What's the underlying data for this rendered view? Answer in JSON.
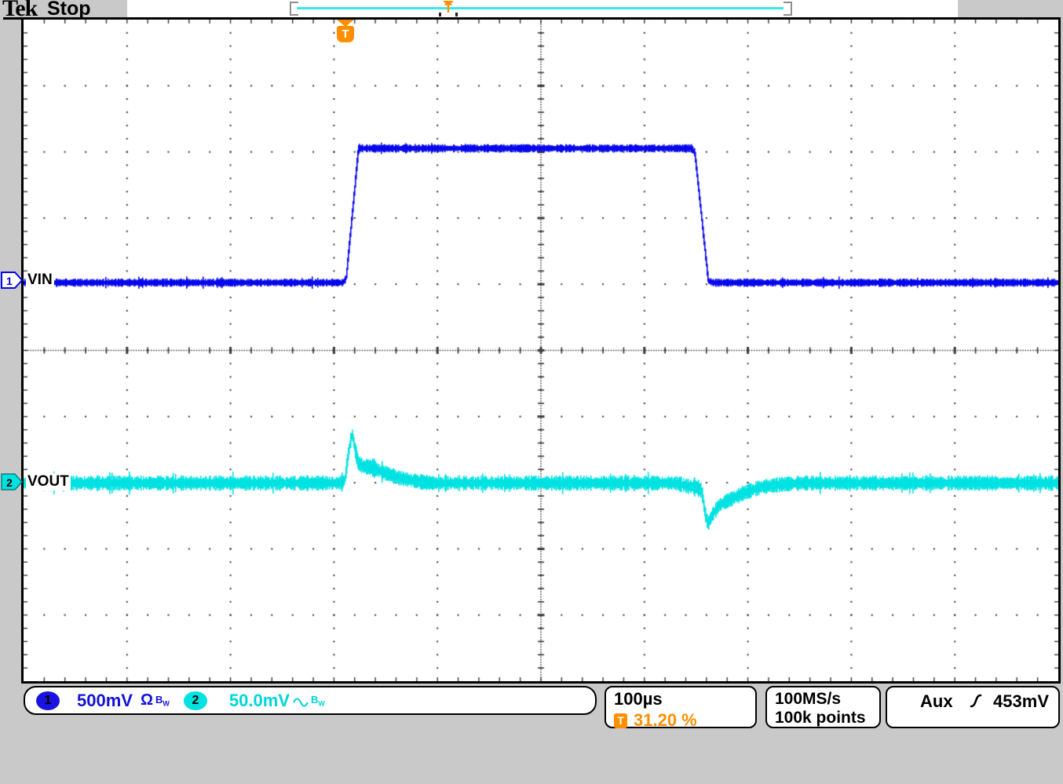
{
  "header": {
    "logo": "Tek",
    "status": "Stop"
  },
  "record_view": {
    "trigger_marker": "T"
  },
  "plot": {
    "trigger_badge": "T"
  },
  "channels": [
    {
      "num": "1",
      "label": "VIN",
      "scale": "500mV",
      "coupling": "Ω",
      "bw_b": "B",
      "bw_w": "W"
    },
    {
      "num": "2",
      "label": "VOUT",
      "scale": "50.0mV",
      "bw_b": "B",
      "bw_w": "W"
    }
  ],
  "timebase": {
    "scale": "100µs",
    "trigger_icon": "T",
    "trigger_position": "31.20 %"
  },
  "acquisition": {
    "sample_rate": "100MS/s",
    "record_length": "100k points"
  },
  "trigger": {
    "source": "Aux",
    "level": "453mV"
  },
  "colors": {
    "ch1": "#0707ec",
    "ch2": "#00e2e2",
    "trigger": "#ff8f00",
    "background": "#c9c9c9",
    "grid": "#3a3a3a"
  },
  "chart_data": {
    "type": "line",
    "x_axis": {
      "per_div": "100µs",
      "divisions": 10,
      "trigger_position_pct": 31.2
    },
    "y_axis": {
      "divisions": 10
    },
    "series": [
      {
        "name": "VIN",
        "channel": 1,
        "per_div": "500mV",
        "color": "#0707ec",
        "baseline_div_above_center": 1.03,
        "noise_div": 0.042,
        "points_div": [
          [
            0,
            0
          ],
          [
            3.08,
            0
          ],
          [
            3.11,
            0.06
          ],
          [
            3.23,
            2.03
          ],
          [
            6.45,
            2.03
          ],
          [
            6.48,
            1.97
          ],
          [
            6.61,
            0.03
          ],
          [
            6.66,
            0
          ],
          [
            10,
            0
          ]
        ],
        "reading": "input step ≈ 2 div = 1.0 V; high for ≈ 3.4 div ≈ 340 µs"
      },
      {
        "name": "VOUT",
        "channel": 2,
        "per_div": "50.0mV",
        "color": "#00e2e2",
        "baseline_div_above_center": -2.0,
        "noise_div": 0.082,
        "points_div": [
          [
            0,
            0
          ],
          [
            3.05,
            0
          ],
          [
            3.1,
            0.04
          ],
          [
            3.14,
            0.52
          ],
          [
            3.17,
            0.75
          ],
          [
            3.2,
            0.5
          ],
          [
            3.23,
            0.3
          ],
          [
            3.28,
            0.25
          ],
          [
            3.36,
            0.24
          ],
          [
            3.46,
            0.17
          ],
          [
            3.62,
            0.08
          ],
          [
            3.82,
            0.02
          ],
          [
            3.95,
            0
          ],
          [
            6.3,
            0
          ],
          [
            6.42,
            -0.05
          ],
          [
            6.5,
            -0.06
          ],
          [
            6.55,
            -0.12
          ],
          [
            6.58,
            -0.45
          ],
          [
            6.61,
            -0.62
          ],
          [
            6.65,
            -0.48
          ],
          [
            6.72,
            -0.33
          ],
          [
            6.82,
            -0.25
          ],
          [
            6.97,
            -0.14
          ],
          [
            7.12,
            -0.06
          ],
          [
            7.32,
            -0.02
          ],
          [
            7.5,
            0
          ],
          [
            10,
            0
          ]
        ],
        "reading": "overshoot ≈ +0.75 div ≈ +37 mV at input rise; droop ≈ −0.62 div ≈ −31 mV at input fall"
      }
    ]
  }
}
